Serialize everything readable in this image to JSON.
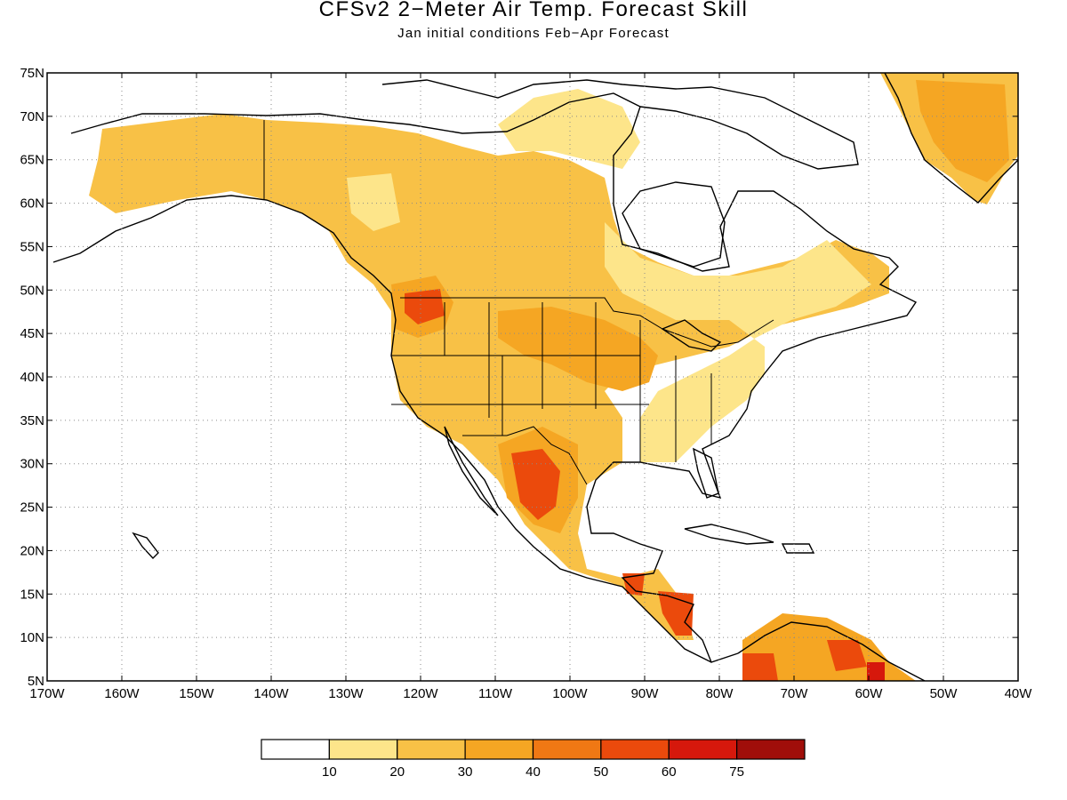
{
  "title": "CFSv2 2−Meter Air Temp. Forecast Skill",
  "subtitle": "Jan initial conditions   Feb−Apr Forecast",
  "lat_labels": [
    "75N",
    "70N",
    "65N",
    "60N",
    "55N",
    "50N",
    "45N",
    "40N",
    "35N",
    "30N",
    "25N",
    "20N",
    "15N",
    "10N",
    "5N"
  ],
  "lon_labels": [
    "170W",
    "160W",
    "150W",
    "140W",
    "130W",
    "120W",
    "110W",
    "100W",
    "90W",
    "80W",
    "70W",
    "60W",
    "50W",
    "40W"
  ],
  "extent": {
    "lon_min": -170,
    "lon_max": -40,
    "lat_min": 5,
    "lat_max": 75
  },
  "legend": {
    "colors": [
      "#ffffff",
      "#fde58a",
      "#f8c146",
      "#f5a623",
      "#f07814",
      "#eb4a0c",
      "#d6180c",
      "#a00e0a"
    ],
    "labels": [
      "10",
      "20",
      "30",
      "40",
      "50",
      "60",
      "75"
    ]
  },
  "colors": {
    "land_outline": "#000000",
    "grid": "#8a8a8a"
  }
}
